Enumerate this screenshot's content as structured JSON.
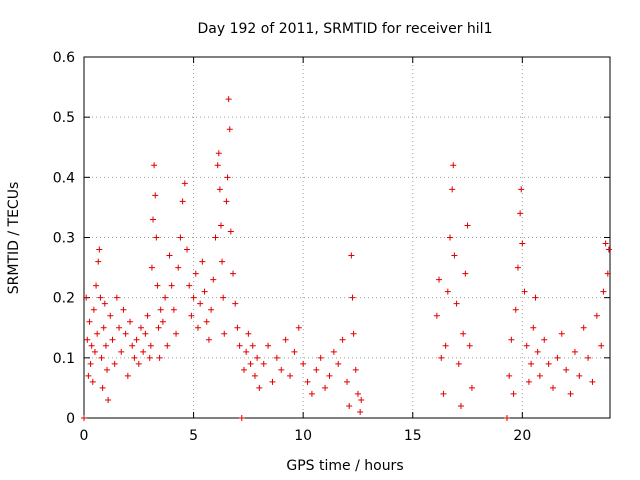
{
  "chart_data": {
    "type": "scatter",
    "title": "Day 192 of 2011, SRMTID for receiver hil1",
    "xlabel": "GPS time / hours",
    "ylabel": "SRMTID / TECUs",
    "xlim": [
      0,
      24
    ],
    "ylim": [
      0,
      0.6
    ],
    "x_ticks": [
      0,
      5,
      10,
      15,
      20
    ],
    "y_ticks": [
      0,
      0.1,
      0.2,
      0.3,
      0.4,
      0.5,
      0.6
    ],
    "x_tick_labels": [
      "0",
      "5",
      "10",
      "15",
      "20"
    ],
    "y_tick_labels": [
      "0",
      "0.1",
      "0.2",
      "0.3",
      "0.4",
      "0.5",
      "0.6"
    ],
    "grid": true,
    "marker": "+",
    "marker_color": "#e00000",
    "series": [
      {
        "name": "SRMTID",
        "points": [
          [
            0.0,
            0.0
          ],
          [
            0.1,
            0.2
          ],
          [
            0.15,
            0.13
          ],
          [
            0.2,
            0.07
          ],
          [
            0.25,
            0.16
          ],
          [
            0.3,
            0.09
          ],
          [
            0.35,
            0.12
          ],
          [
            0.4,
            0.06
          ],
          [
            0.45,
            0.18
          ],
          [
            0.5,
            0.11
          ],
          [
            0.55,
            0.22
          ],
          [
            0.6,
            0.14
          ],
          [
            0.65,
            0.26
          ],
          [
            0.7,
            0.28
          ],
          [
            0.75,
            0.2
          ],
          [
            0.8,
            0.1
          ],
          [
            0.85,
            0.05
          ],
          [
            0.9,
            0.15
          ],
          [
            0.95,
            0.19
          ],
          [
            1.0,
            0.12
          ],
          [
            1.05,
            0.08
          ],
          [
            1.1,
            0.03
          ],
          [
            1.2,
            0.17
          ],
          [
            1.3,
            0.13
          ],
          [
            1.4,
            0.09
          ],
          [
            1.5,
            0.2
          ],
          [
            1.6,
            0.15
          ],
          [
            1.7,
            0.11
          ],
          [
            1.8,
            0.18
          ],
          [
            1.9,
            0.14
          ],
          [
            2.0,
            0.07
          ],
          [
            2.1,
            0.16
          ],
          [
            2.2,
            0.12
          ],
          [
            2.3,
            0.1
          ],
          [
            2.4,
            0.13
          ],
          [
            2.5,
            0.09
          ],
          [
            2.6,
            0.15
          ],
          [
            2.7,
            0.11
          ],
          [
            2.8,
            0.14
          ],
          [
            2.9,
            0.17
          ],
          [
            3.0,
            0.1
          ],
          [
            3.05,
            0.12
          ],
          [
            3.1,
            0.25
          ],
          [
            3.15,
            0.33
          ],
          [
            3.2,
            0.42
          ],
          [
            3.25,
            0.37
          ],
          [
            3.3,
            0.3
          ],
          [
            3.35,
            0.22
          ],
          [
            3.4,
            0.15
          ],
          [
            3.45,
            0.1
          ],
          [
            3.5,
            0.18
          ],
          [
            3.6,
            0.16
          ],
          [
            3.7,
            0.2
          ],
          [
            3.8,
            0.12
          ],
          [
            3.9,
            0.27
          ],
          [
            4.0,
            0.22
          ],
          [
            4.1,
            0.18
          ],
          [
            4.2,
            0.14
          ],
          [
            4.3,
            0.25
          ],
          [
            4.4,
            0.3
          ],
          [
            4.5,
            0.36
          ],
          [
            4.6,
            0.39
          ],
          [
            4.7,
            0.28
          ],
          [
            4.8,
            0.22
          ],
          [
            4.9,
            0.17
          ],
          [
            5.0,
            0.2
          ],
          [
            5.1,
            0.24
          ],
          [
            5.2,
            0.15
          ],
          [
            5.3,
            0.19
          ],
          [
            5.4,
            0.26
          ],
          [
            5.5,
            0.21
          ],
          [
            5.6,
            0.16
          ],
          [
            5.7,
            0.13
          ],
          [
            5.8,
            0.18
          ],
          [
            5.9,
            0.23
          ],
          [
            6.0,
            0.3
          ],
          [
            6.1,
            0.42
          ],
          [
            6.15,
            0.44
          ],
          [
            6.2,
            0.38
          ],
          [
            6.25,
            0.32
          ],
          [
            6.3,
            0.26
          ],
          [
            6.35,
            0.2
          ],
          [
            6.4,
            0.14
          ],
          [
            6.5,
            0.36
          ],
          [
            6.55,
            0.4
          ],
          [
            6.6,
            0.53
          ],
          [
            6.65,
            0.48
          ],
          [
            6.7,
            0.31
          ],
          [
            6.8,
            0.24
          ],
          [
            6.9,
            0.19
          ],
          [
            7.0,
            0.15
          ],
          [
            7.1,
            0.12
          ],
          [
            7.2,
            0.0
          ],
          [
            7.3,
            0.08
          ],
          [
            7.4,
            0.11
          ],
          [
            7.5,
            0.14
          ],
          [
            7.6,
            0.09
          ],
          [
            7.7,
            0.12
          ],
          [
            7.8,
            0.07
          ],
          [
            7.9,
            0.1
          ],
          [
            8.0,
            0.05
          ],
          [
            8.2,
            0.09
          ],
          [
            8.4,
            0.12
          ],
          [
            8.6,
            0.06
          ],
          [
            8.8,
            0.1
          ],
          [
            9.0,
            0.08
          ],
          [
            9.2,
            0.13
          ],
          [
            9.4,
            0.07
          ],
          [
            9.6,
            0.11
          ],
          [
            9.8,
            0.15
          ],
          [
            10.0,
            0.09
          ],
          [
            10.2,
            0.06
          ],
          [
            10.4,
            0.04
          ],
          [
            10.6,
            0.08
          ],
          [
            10.8,
            0.1
          ],
          [
            11.0,
            0.05
          ],
          [
            11.2,
            0.07
          ],
          [
            11.4,
            0.11
          ],
          [
            11.6,
            0.09
          ],
          [
            11.8,
            0.13
          ],
          [
            12.0,
            0.06
          ],
          [
            12.1,
            0.02
          ],
          [
            12.2,
            0.27
          ],
          [
            12.25,
            0.2
          ],
          [
            12.3,
            0.14
          ],
          [
            12.4,
            0.08
          ],
          [
            12.5,
            0.04
          ],
          [
            12.6,
            0.01
          ],
          [
            12.65,
            0.03
          ],
          [
            16.1,
            0.17
          ],
          [
            16.2,
            0.23
          ],
          [
            16.3,
            0.1
          ],
          [
            16.4,
            0.04
          ],
          [
            16.5,
            0.12
          ],
          [
            16.6,
            0.21
          ],
          [
            16.7,
            0.3
          ],
          [
            16.8,
            0.38
          ],
          [
            16.85,
            0.42
          ],
          [
            16.9,
            0.27
          ],
          [
            17.0,
            0.19
          ],
          [
            17.1,
            0.09
          ],
          [
            17.2,
            0.02
          ],
          [
            17.3,
            0.14
          ],
          [
            17.4,
            0.24
          ],
          [
            17.5,
            0.32
          ],
          [
            17.6,
            0.12
          ],
          [
            17.7,
            0.05
          ],
          [
            19.3,
            0.0
          ],
          [
            19.4,
            0.07
          ],
          [
            19.5,
            0.13
          ],
          [
            19.6,
            0.04
          ],
          [
            19.7,
            0.18
          ],
          [
            19.8,
            0.25
          ],
          [
            19.9,
            0.34
          ],
          [
            19.95,
            0.38
          ],
          [
            20.0,
            0.29
          ],
          [
            20.1,
            0.21
          ],
          [
            20.2,
            0.12
          ],
          [
            20.3,
            0.06
          ],
          [
            20.4,
            0.09
          ],
          [
            20.5,
            0.15
          ],
          [
            20.6,
            0.2
          ],
          [
            20.7,
            0.11
          ],
          [
            20.8,
            0.07
          ],
          [
            21.0,
            0.13
          ],
          [
            21.2,
            0.09
          ],
          [
            21.4,
            0.05
          ],
          [
            21.6,
            0.1
          ],
          [
            21.8,
            0.14
          ],
          [
            22.0,
            0.08
          ],
          [
            22.2,
            0.04
          ],
          [
            22.4,
            0.11
          ],
          [
            22.6,
            0.07
          ],
          [
            22.8,
            0.15
          ],
          [
            23.0,
            0.1
          ],
          [
            23.2,
            0.06
          ],
          [
            23.4,
            0.17
          ],
          [
            23.6,
            0.12
          ],
          [
            23.7,
            0.21
          ],
          [
            23.8,
            0.29
          ],
          [
            23.9,
            0.24
          ],
          [
            23.95,
            0.28
          ]
        ]
      }
    ]
  }
}
